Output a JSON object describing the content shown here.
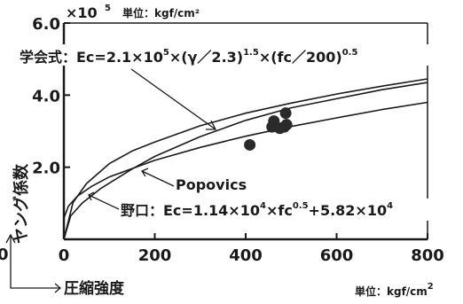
{
  "chart_data": {
    "type": "scatter",
    "x_ticks": [
      "0",
      "200",
      "400",
      "600",
      "800"
    ],
    "y_ticks": [
      "2.0",
      "4.0",
      "6.0"
    ],
    "xlim": [
      0,
      800
    ],
    "ylim": [
      0,
      6.0
    ],
    "y_exponent": "×10",
    "y_exponent_power": "5",
    "top_unit": "単位：kgf/cm²",
    "ylabel": "ヤング係数",
    "xlabel": "圧縮強度",
    "bottom_unit_prefix": "単位：kgf/cm",
    "bottom_unit_power": "2",
    "origin_label": "0",
    "formulas": {
      "gakkai": {
        "prefix": "学会式：Ec=2.1×10",
        "p1": "5",
        "mid1": "×(γ／2.3)",
        "p2": "1.5",
        "mid2": "×(fc／200)",
        "p3": "0.5"
      },
      "popovics": {
        "text": "Popovics"
      },
      "noguchi": {
        "prefix": "野口：Ec=1.14×10",
        "p1": "4",
        "mid": "×fc",
        "p2": "0.5",
        "mid2": "+5.82×10",
        "p3": "4"
      }
    },
    "curves": {
      "gakkai": {
        "x": [
          0,
          20,
          50,
          100,
          150,
          200,
          300,
          400,
          500,
          600,
          700,
          800
        ],
        "y": [
          0,
          1.02,
          1.55,
          2.1,
          2.45,
          2.7,
          3.15,
          3.5,
          3.78,
          4.03,
          4.25,
          4.45
        ]
      },
      "popovics": {
        "x": [
          0,
          15,
          40,
          80,
          150,
          200,
          300,
          400,
          500,
          600,
          700,
          800
        ],
        "y": [
          0,
          0.65,
          1.0,
          1.4,
          1.95,
          2.3,
          2.85,
          3.3,
          3.65,
          3.9,
          4.15,
          4.35
        ]
      },
      "noguchi": {
        "x": [
          0,
          10,
          30,
          60,
          100,
          200,
          300,
          400,
          500,
          600,
          700,
          800
        ],
        "y": [
          0.58,
          0.92,
          1.2,
          1.46,
          1.73,
          2.19,
          2.55,
          2.86,
          3.13,
          3.37,
          3.6,
          3.8
        ]
      }
    },
    "points": [
      {
        "x": 409,
        "y": 2.62
      },
      {
        "x": 458,
        "y": 3.12
      },
      {
        "x": 462,
        "y": 3.28
      },
      {
        "x": 475,
        "y": 3.08
      },
      {
        "x": 485,
        "y": 3.12
      },
      {
        "x": 488,
        "y": 3.5
      },
      {
        "x": 490,
        "y": 3.18
      }
    ],
    "grid": false
  }
}
